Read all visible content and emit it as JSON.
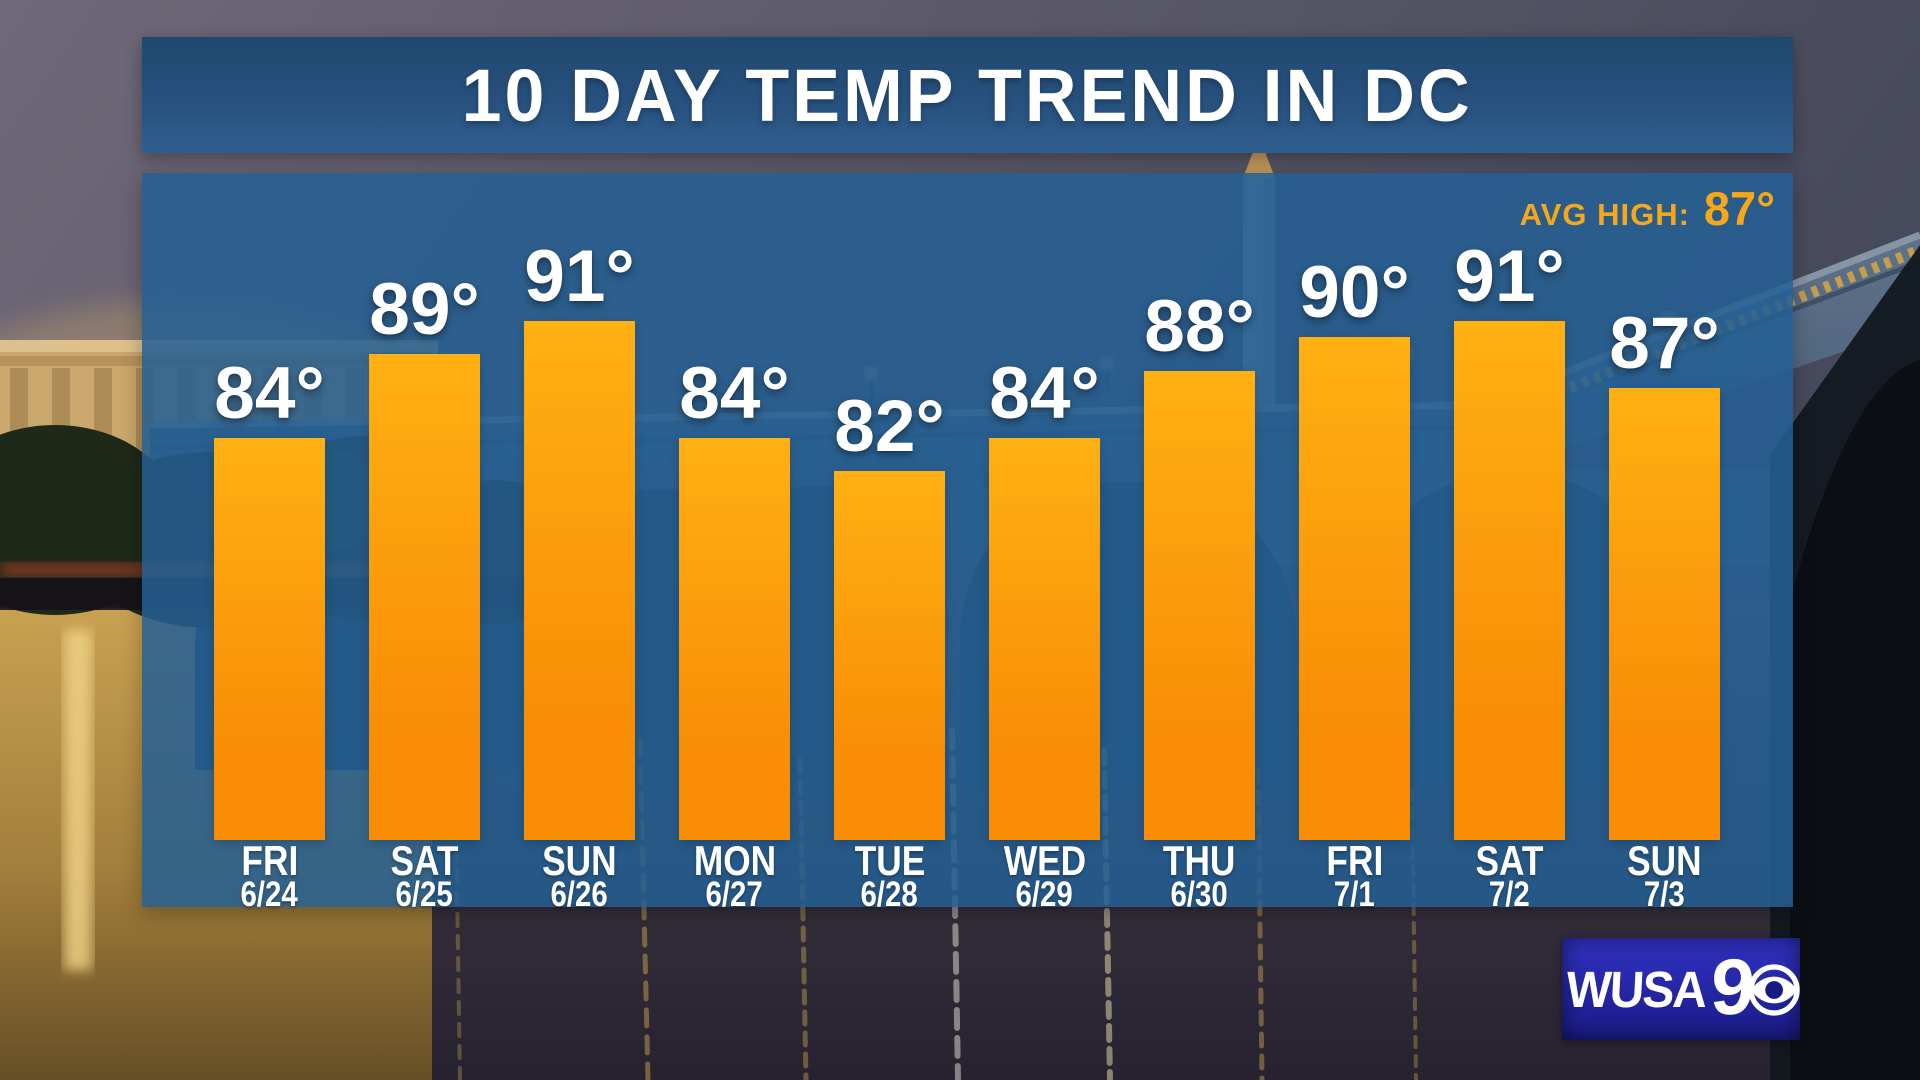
{
  "header": {
    "title": "10 DAY TEMP TREND IN DC"
  },
  "annotation": {
    "label": "AVG HIGH:",
    "value": "87°"
  },
  "chart_data": {
    "type": "bar",
    "title": "10 DAY TEMP TREND IN DC",
    "series_name": "Daily high temperature",
    "unit": "°F",
    "categories": [
      "FRI 6/24",
      "SAT 6/25",
      "SUN 6/26",
      "MON 6/27",
      "TUE 6/28",
      "WED 6/29",
      "THU 6/30",
      "FRI 7/1",
      "SAT 7/2",
      "SUN 7/3"
    ],
    "values": [
      84,
      89,
      91,
      84,
      82,
      84,
      88,
      90,
      91,
      87
    ],
    "value_suffix": "°",
    "x_tick_labels": [
      {
        "day": "FRI",
        "date": "6/24"
      },
      {
        "day": "SAT",
        "date": "6/25"
      },
      {
        "day": "SUN",
        "date": "6/26"
      },
      {
        "day": "MON",
        "date": "6/27"
      },
      {
        "day": "TUE",
        "date": "6/28"
      },
      {
        "day": "WED",
        "date": "6/29"
      },
      {
        "day": "THU",
        "date": "6/30"
      },
      {
        "day": "FRI",
        "date": "7/1"
      },
      {
        "day": "SAT",
        "date": "7/2"
      },
      {
        "day": "SUN",
        "date": "7/3"
      }
    ],
    "annotations": [
      {
        "text": "AVG HIGH: 87°",
        "position": "top-right"
      }
    ],
    "ylim": [
      60,
      100
    ],
    "grid": false,
    "legend": false
  },
  "branding": {
    "station_text": "WUSA",
    "station_number": "9",
    "network_icon": "cbs-eye"
  },
  "colors": {
    "accent": "#F7A717",
    "bar_top": "#FFB013",
    "bar_bottom": "#F88D04",
    "title_bar": "#27517E",
    "panel": "rgba(36,95,148,0.86)",
    "logo_top": "#3132C4",
    "logo_bottom": "#191B85",
    "text": "#FFFFFF"
  }
}
